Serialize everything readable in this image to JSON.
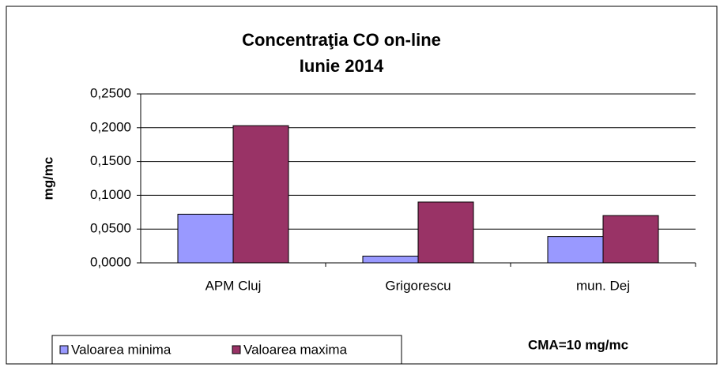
{
  "chart_data": {
    "type": "bar",
    "title": "Concentraţia CO on-line",
    "subtitle": "Iunie 2014",
    "y_label": "mg/mc",
    "annotation": "CMA=10 mg/mc",
    "categories": [
      "APM Cluj",
      "Grigorescu",
      "mun. Dej"
    ],
    "series": [
      {
        "name": "Valoarea minima",
        "color": "#9999ff",
        "values": [
          0.072,
          0.01,
          0.039
        ]
      },
      {
        "name": "Valoarea maxima",
        "color": "#993366",
        "values": [
          0.203,
          0.09,
          0.07
        ]
      }
    ],
    "ylim": [
      0,
      0.25
    ],
    "yticks": [
      {
        "value": 0,
        "label": "0,0000"
      },
      {
        "value": 0.05,
        "label": "0,0500"
      },
      {
        "value": 0.1,
        "label": "0,1000"
      },
      {
        "value": 0.15,
        "label": "0,1500"
      },
      {
        "value": 0.2,
        "label": "0,2000"
      },
      {
        "value": 0.25,
        "label": "0,2500"
      }
    ],
    "grid": true,
    "legend": "bottom-left"
  }
}
